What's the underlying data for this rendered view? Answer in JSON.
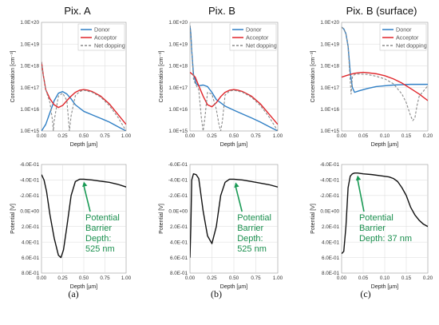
{
  "panels": [
    {
      "title": "Pix. A",
      "caption": "(a)"
    },
    {
      "title": "Pix. B",
      "caption": "(b)"
    },
    {
      "title": "Pix. B (surface)",
      "caption": "(c)"
    }
  ],
  "colors": {
    "donor": "#2f7fc5",
    "acceptor": "#e0262b",
    "net": "#8a8a8a",
    "potential": "#111111",
    "annotation": "#1a9a55"
  },
  "chart_data": [
    {
      "type": "line",
      "panel": "a-top",
      "title": "Pix. A",
      "xlabel": "Depth [µm]",
      "ylabel": "Concentration [cm⁻³]",
      "yscale": "log",
      "xlim": [
        0,
        1.0
      ],
      "ylim": [
        1000000000000000.0,
        1e+20
      ],
      "xticks": [
        "0.00",
        "0.25",
        "0.50",
        "0.75",
        "1.00"
      ],
      "yticks": [
        "1.0E+15",
        "1.0E+16",
        "1.0E+17",
        "1.0E+18",
        "1.0E+19",
        "1.0E+20"
      ],
      "legend": "top-right",
      "grid": true,
      "series": [
        {
          "name": "Donor",
          "color": "#2f7fc5",
          "style": "solid",
          "x": [
            0.0,
            0.05,
            0.1,
            0.15,
            0.2,
            0.25,
            0.3,
            0.35,
            0.4,
            0.5,
            0.6,
            0.7,
            0.8,
            0.9,
            1.0
          ],
          "y": [
            1000000000000000.0,
            2000000000000000.0,
            7000000000000000.0,
            2.5e+16,
            5.5e+16,
            6.5e+16,
            5e+16,
            3e+16,
            1.6e+16,
            8000000000000000.0,
            5500000000000000.0,
            3800000000000000.0,
            2600000000000000.0,
            1600000000000000.0,
            1000000000000000.0
          ]
        },
        {
          "name": "Acceptor",
          "color": "#e0262b",
          "style": "solid",
          "x": [
            0.0,
            0.02,
            0.05,
            0.1,
            0.15,
            0.2,
            0.25,
            0.3,
            0.35,
            0.4,
            0.45,
            0.5,
            0.55,
            0.6,
            0.7,
            0.8,
            0.9,
            1.0
          ],
          "y": [
            1.5e+18,
            4e+17,
            8e+16,
            3e+16,
            1.6e+16,
            1.2e+16,
            1.5e+16,
            2.5e+16,
            4e+16,
            6e+16,
            7.5e+16,
            8e+16,
            7.5e+16,
            6.5e+16,
            4e+16,
            1.8e+16,
            6000000000000000.0,
            2000000000000000.0
          ]
        },
        {
          "name": "Net dopping",
          "color": "#8a8a8a",
          "style": "dashed",
          "x": [
            0.0,
            0.02,
            0.05,
            0.1,
            0.13,
            0.14,
            0.15,
            0.2,
            0.25,
            0.3,
            0.32,
            0.33,
            0.35,
            0.4,
            0.45,
            0.5,
            0.6,
            0.7,
            0.8,
            0.9,
            1.0
          ],
          "y": [
            1.5e+18,
            4e+17,
            8e+16,
            2e+16,
            3000000000000000.0,
            1000000000000000.0,
            3000000000000000.0,
            4e+16,
            5.5e+16,
            2.5e+16,
            3000000000000000.0,
            1000000000000000.0,
            5000000000000000.0,
            4.2e+16,
            6.5e+16,
            7.5e+16,
            6e+16,
            3.6e+16,
            1.5e+16,
            4500000000000000.0,
            1000000000000000.0
          ]
        }
      ]
    },
    {
      "type": "line",
      "panel": "b-top",
      "title": "Pix. B",
      "xlabel": "Depth [µm]",
      "ylabel": "Concentration [cm⁻³]",
      "yscale": "log",
      "xlim": [
        0,
        1.0
      ],
      "ylim": [
        1000000000000000.0,
        1e+20
      ],
      "xticks": [
        "0.00",
        "0.25",
        "0.50",
        "0.75",
        "1.00"
      ],
      "yticks": [
        "1.0E+15",
        "1.0E+16",
        "1.0E+17",
        "1.0E+18",
        "1.0E+19",
        "1.0E+20"
      ],
      "legend": "top-right",
      "grid": true,
      "series": [
        {
          "name": "Donor",
          "color": "#2f7fc5",
          "style": "solid",
          "x": [
            0.0,
            0.01,
            0.02,
            0.04,
            0.07,
            0.1,
            0.15,
            0.2,
            0.25,
            0.3,
            0.4,
            0.5,
            0.6,
            0.7,
            0.8,
            0.9,
            1.0
          ],
          "y": [
            7e+19,
            3e+19,
            5e+18,
            4e+17,
            1.5e+17,
            1.2e+17,
            1.3e+17,
            1.1e+17,
            6e+16,
            2.8e+16,
            1.4e+16,
            9000000000000000.0,
            6000000000000000.0,
            4000000000000000.0,
            2600000000000000.0,
            1600000000000000.0,
            1000000000000000.0
          ]
        },
        {
          "name": "Acceptor",
          "color": "#e0262b",
          "style": "solid",
          "x": [
            0.0,
            0.03,
            0.06,
            0.1,
            0.15,
            0.2,
            0.25,
            0.3,
            0.35,
            0.4,
            0.45,
            0.5,
            0.55,
            0.6,
            0.7,
            0.8,
            0.9,
            1.0
          ],
          "y": [
            5e+17,
            4e+17,
            3e+17,
            1.2e+17,
            4e+16,
            1.6e+16,
            1.3e+16,
            2e+16,
            3.8e+16,
            6e+16,
            7.5e+16,
            8e+16,
            7.5e+16,
            6.5e+16,
            4e+16,
            1.8e+16,
            6000000000000000.0,
            2000000000000000.0
          ]
        },
        {
          "name": "Net dopping",
          "color": "#8a8a8a",
          "style": "dashed",
          "x": [
            0.0,
            0.01,
            0.02,
            0.04,
            0.06,
            0.1,
            0.13,
            0.15,
            0.17,
            0.2,
            0.25,
            0.3,
            0.33,
            0.35,
            0.37,
            0.4,
            0.45,
            0.5,
            0.6,
            0.7,
            0.8,
            0.9,
            1.0
          ],
          "y": [
            7e+19,
            3e+19,
            5e+18,
            2.5e+17,
            1.5e+17,
            8e+16,
            4000000000000000.0,
            1000000000000000.0,
            4000000000000000.0,
            6e+16,
            5e+16,
            1e+16,
            2000000000000000.0,
            1000000000000000.0,
            3000000000000000.0,
            4.5e+16,
            6.8e+16,
            7.5e+16,
            6e+16,
            3.6e+16,
            1.5e+16,
            4500000000000000.0,
            1000000000000000.0
          ]
        }
      ]
    },
    {
      "type": "line",
      "panel": "c-top",
      "title": "Pix. B (surface)",
      "xlabel": "Depth [µm]",
      "ylabel": "Concentration [cm⁻³]",
      "yscale": "log",
      "xlim": [
        0,
        0.2
      ],
      "ylim": [
        1000000000000000.0,
        1e+20
      ],
      "xticks": [
        "0.00",
        "0.05",
        "0.10",
        "0.15",
        "0.20"
      ],
      "yticks": [
        "1.0E+15",
        "1.0E+16",
        "1.0E+17",
        "1.0E+18",
        "1.0E+19",
        "1.0E+20"
      ],
      "legend": "top-right",
      "grid": true,
      "series": [
        {
          "name": "Donor",
          "color": "#2f7fc5",
          "style": "solid",
          "x": [
            0.0,
            0.005,
            0.01,
            0.015,
            0.02,
            0.025,
            0.03,
            0.04,
            0.06,
            0.08,
            0.1,
            0.12,
            0.14,
            0.16,
            0.18,
            0.2
          ],
          "y": [
            6e+19,
            5e+19,
            3e+19,
            8e+18,
            5e+17,
            1e+17,
            6e+16,
            7e+16,
            9e+16,
            1.1e+17,
            1.2e+17,
            1.3e+17,
            1.35e+17,
            1.4e+17,
            1.4e+17,
            1.4e+17
          ]
        },
        {
          "name": "Acceptor",
          "color": "#e0262b",
          "style": "solid",
          "x": [
            0.0,
            0.01,
            0.02,
            0.03,
            0.04,
            0.05,
            0.06,
            0.08,
            0.1,
            0.12,
            0.14,
            0.16,
            0.18,
            0.2
          ],
          "y": [
            3e+17,
            3.5e+17,
            4e+17,
            4.5e+17,
            4.8e+17,
            5e+17,
            4.8e+17,
            4.3e+17,
            3.5e+17,
            2.5e+17,
            1.6e+17,
            9e+16,
            5e+16,
            2.5e+16
          ]
        },
        {
          "name": "Net dopping",
          "color": "#8a8a8a",
          "style": "dashed",
          "x": [
            0.0,
            0.005,
            0.01,
            0.015,
            0.02,
            0.022,
            0.025,
            0.03,
            0.04,
            0.06,
            0.08,
            0.1,
            0.12,
            0.14,
            0.15,
            0.16,
            0.165,
            0.17,
            0.175,
            0.18,
            0.2
          ],
          "y": [
            6e+19,
            5e+19,
            3e+19,
            8e+18,
            2e+17,
            5e+16,
            3e+17,
            4e+17,
            4.2e+17,
            4e+17,
            3.3e+17,
            2.5e+17,
            1.5e+17,
            5e+16,
            2e+16,
            5000000000000000.0,
            3000000000000000.0,
            4000000000000000.0,
            1.5e+16,
            4e+16,
            1.2e+17
          ]
        }
      ]
    },
    {
      "type": "line",
      "panel": "a-bottom",
      "xlabel": "Depth [µm]",
      "ylabel": "Potential [V]",
      "xlim": [
        0,
        1.0
      ],
      "ylim": [
        -0.6,
        0.8
      ],
      "yinverted": true,
      "xticks": [
        "0.00",
        "0.25",
        "0.50",
        "0.75",
        "1.00"
      ],
      "yticks": [
        "-6.0E-01",
        "-4.0E-01",
        "-2.0E-01",
        "0.0E+00",
        "2.0E-01",
        "4.0E-01",
        "6.0E-01",
        "8.0E-01"
      ],
      "grid": true,
      "annotation": {
        "text": [
          "Potential",
          "Barrier",
          "Depth:",
          "525 nm"
        ],
        "arrow_to": [
          0.5,
          -0.41
        ]
      },
      "series": [
        {
          "name": "",
          "color": "#111111",
          "x": [
            0.0,
            0.03,
            0.06,
            0.1,
            0.15,
            0.2,
            0.23,
            0.26,
            0.3,
            0.35,
            0.4,
            0.45,
            0.5,
            0.55,
            0.6,
            0.7,
            0.8,
            0.9,
            1.0
          ],
          "y": [
            -0.47,
            -0.4,
            -0.25,
            0.05,
            0.35,
            0.57,
            0.6,
            0.5,
            0.2,
            -0.2,
            -0.38,
            -0.41,
            -0.41,
            -0.405,
            -0.4,
            -0.385,
            -0.37,
            -0.345,
            -0.31
          ]
        }
      ]
    },
    {
      "type": "line",
      "panel": "b-bottom",
      "xlabel": "Depth [µm]",
      "ylabel": "Potential [V]",
      "xlim": [
        0,
        1.0
      ],
      "ylim": [
        -0.6,
        0.8
      ],
      "yinverted": true,
      "xticks": [
        "0.00",
        "0.25",
        "0.50",
        "0.75",
        "1.00"
      ],
      "yticks": [
        "-6.0E-01",
        "-4.0E-01",
        "-2.0E-01",
        "0.0E+00",
        "2.0E-01",
        "4.0E-01",
        "6.0E-01",
        "8.0E-01"
      ],
      "grid": true,
      "annotation": {
        "text": [
          "Potential",
          "Barrier",
          "Depth:",
          "525 nm"
        ],
        "arrow_to": [
          0.52,
          -0.4
        ]
      },
      "series": [
        {
          "name": "",
          "color": "#111111",
          "x": [
            0.0,
            0.01,
            0.02,
            0.04,
            0.07,
            0.1,
            0.15,
            0.2,
            0.25,
            0.3,
            0.35,
            0.4,
            0.45,
            0.5,
            0.6,
            0.7,
            0.8,
            0.9,
            1.0
          ],
          "y": [
            0.6,
            0.2,
            -0.4,
            -0.48,
            -0.47,
            -0.42,
            0.0,
            0.32,
            0.42,
            0.2,
            -0.2,
            -0.37,
            -0.41,
            -0.41,
            -0.4,
            -0.38,
            -0.36,
            -0.34,
            -0.31
          ]
        }
      ]
    },
    {
      "type": "line",
      "panel": "c-bottom",
      "xlabel": "Depth [µm]",
      "ylabel": "Potential [V]",
      "xlim": [
        0,
        0.2
      ],
      "ylim": [
        -0.6,
        0.8
      ],
      "yinverted": true,
      "xticks": [
        "0.00",
        "0.05",
        "0.10",
        "0.15",
        "0.20"
      ],
      "yticks": [
        "-6.0E-01",
        "-4.0E-01",
        "-2.0E-01",
        "0.0E+00",
        "2.0E-01",
        "4.0E-01",
        "6.0E-01",
        "8.0E-01"
      ],
      "grid": true,
      "annotation": {
        "text": [
          "Potential",
          "Barrier",
          "Depth: 37 nm"
        ],
        "arrow_to": [
          0.037,
          -0.49
        ]
      },
      "series": [
        {
          "name": "",
          "color": "#111111",
          "x": [
            0.0,
            0.005,
            0.01,
            0.015,
            0.02,
            0.025,
            0.03,
            0.037,
            0.05,
            0.07,
            0.09,
            0.11,
            0.12,
            0.13,
            0.14,
            0.15,
            0.16,
            0.17,
            0.18,
            0.19,
            0.2
          ],
          "y": [
            0.55,
            0.52,
            0.2,
            -0.3,
            -0.45,
            -0.48,
            -0.49,
            -0.49,
            -0.48,
            -0.47,
            -0.455,
            -0.44,
            -0.42,
            -0.38,
            -0.3,
            -0.2,
            -0.05,
            0.05,
            0.12,
            0.17,
            0.2
          ]
        }
      ]
    }
  ]
}
